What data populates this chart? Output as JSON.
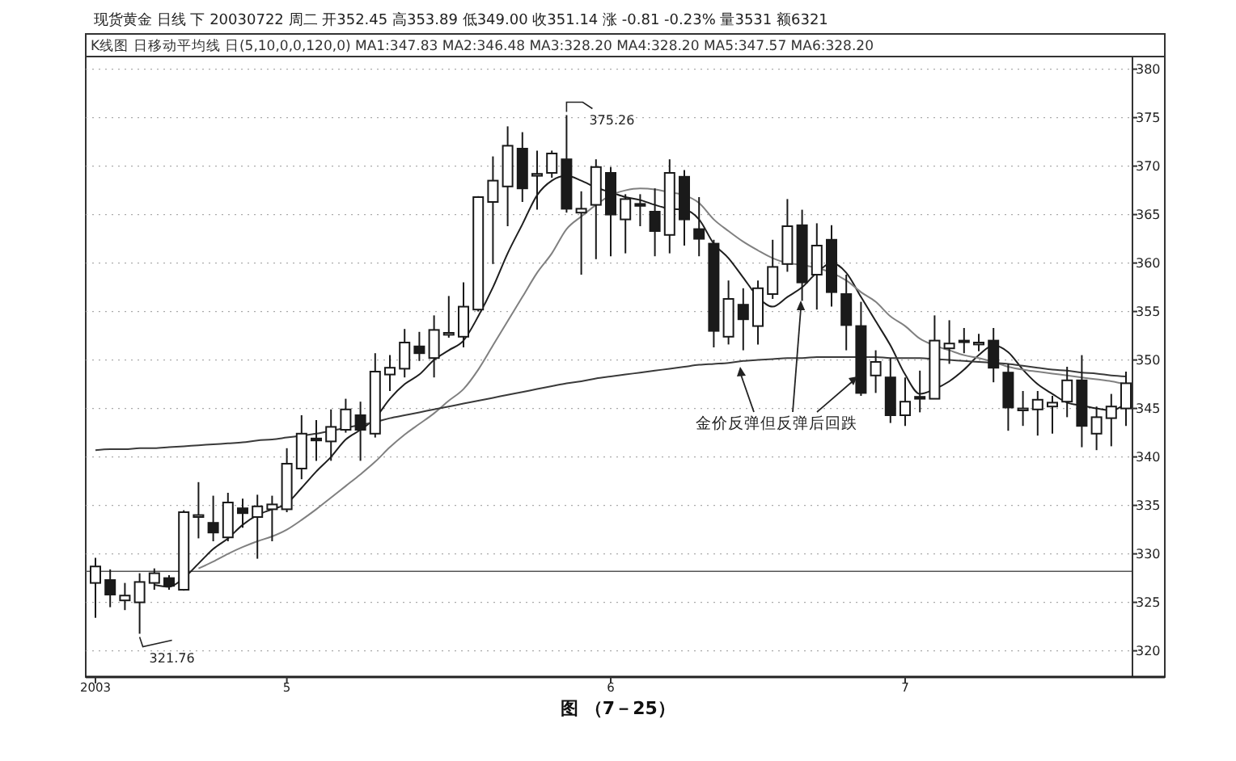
{
  "chart_data": {
    "type": "candlestick",
    "title": "现货黄金 日线 下 20030722 周二 开352.45 高353.89 低349.00 收351.14 涨 -0.81 -0.23% 量3531 额6321",
    "subtitle": "K线图 日移动平均线 日(5,10,0,0,120,0) MA1:347.83 MA2:346.48 MA3:328.20 MA4:328.20 MA5:347.57 MA6:328.20",
    "categories": [
      "2003",
      null,
      null,
      null,
      null,
      null,
      null,
      null,
      null,
      null,
      null,
      null,
      null,
      "5",
      null,
      null,
      null,
      null,
      null,
      null,
      null,
      null,
      null,
      null,
      null,
      null,
      null,
      null,
      null,
      null,
      null,
      null,
      null,
      null,
      null,
      "6",
      null,
      null,
      null,
      null,
      null,
      null,
      null,
      null,
      null,
      null,
      null,
      null,
      null,
      null,
      null,
      null,
      null,
      null,
      null,
      "7",
      null,
      null,
      null,
      null,
      null,
      null,
      null,
      null,
      null,
      null,
      null,
      null,
      null,
      null,
      null
    ],
    "ohlc": [
      [
        327.0,
        329.6,
        323.4,
        328.7
      ],
      [
        327.3,
        328.4,
        324.5,
        325.8
      ],
      [
        325.2,
        327.0,
        324.2,
        325.7
      ],
      [
        325.0,
        328.0,
        321.76,
        327.1
      ],
      [
        327.0,
        328.5,
        326.3,
        328.0
      ],
      [
        327.5,
        327.8,
        326.3,
        326.7
      ],
      [
        326.3,
        334.5,
        326.2,
        334.3
      ],
      [
        333.8,
        337.4,
        331.6,
        334.0
      ],
      [
        333.2,
        336.0,
        331.3,
        332.2
      ],
      [
        331.7,
        336.3,
        331.3,
        335.3
      ],
      [
        334.7,
        335.7,
        332.7,
        334.2
      ],
      [
        333.8,
        336.1,
        329.5,
        334.9
      ],
      [
        334.6,
        336.0,
        331.3,
        335.1
      ],
      [
        334.6,
        340.9,
        334.3,
        339.3
      ],
      [
        338.8,
        344.3,
        337.7,
        342.4
      ],
      [
        341.9,
        343.8,
        339.6,
        341.7
      ],
      [
        341.6,
        344.9,
        339.6,
        343.1
      ],
      [
        342.8,
        346.0,
        342.5,
        344.9
      ],
      [
        344.3,
        345.7,
        339.6,
        342.8
      ],
      [
        342.4,
        350.7,
        342.0,
        348.8
      ],
      [
        348.5,
        350.5,
        346.8,
        349.2
      ],
      [
        349.1,
        353.2,
        348.2,
        351.8
      ],
      [
        351.4,
        352.9,
        349.9,
        350.7
      ],
      [
        350.2,
        354.6,
        348.2,
        353.1
      ],
      [
        352.6,
        356.6,
        352.3,
        352.8
      ],
      [
        352.4,
        358.0,
        351.3,
        355.5
      ],
      [
        355.2,
        366.9,
        355.0,
        366.8
      ],
      [
        366.3,
        371.0,
        359.9,
        368.5
      ],
      [
        367.9,
        374.1,
        363.8,
        372.1
      ],
      [
        371.8,
        373.5,
        366.3,
        367.7
      ],
      [
        369.0,
        371.6,
        365.5,
        369.2
      ],
      [
        369.3,
        371.6,
        368.8,
        371.3
      ],
      [
        370.7,
        375.26,
        365.2,
        365.6
      ],
      [
        365.2,
        367.4,
        358.8,
        365.6
      ],
      [
        366.0,
        370.7,
        360.4,
        369.9
      ],
      [
        369.3,
        369.9,
        360.7,
        365.0
      ],
      [
        364.5,
        367.1,
        361.0,
        366.6
      ],
      [
        366.1,
        367.1,
        363.8,
        365.9
      ],
      [
        365.3,
        367.7,
        360.7,
        363.3
      ],
      [
        362.9,
        370.7,
        361.0,
        369.3
      ],
      [
        368.9,
        369.6,
        361.8,
        364.5
      ],
      [
        363.5,
        366.8,
        360.7,
        362.5
      ],
      [
        362.0,
        362.4,
        351.3,
        353.0
      ],
      [
        352.4,
        358.2,
        351.6,
        356.3
      ],
      [
        355.7,
        357.4,
        351.0,
        354.2
      ],
      [
        353.5,
        358.2,
        351.6,
        357.4
      ],
      [
        356.8,
        362.4,
        356.3,
        359.6
      ],
      [
        359.9,
        366.6,
        359.1,
        363.8
      ],
      [
        363.9,
        365.5,
        356.1,
        358.0
      ],
      [
        358.8,
        364.1,
        355.2,
        361.8
      ],
      [
        362.4,
        363.9,
        355.5,
        357.0
      ],
      [
        356.8,
        358.8,
        351.0,
        353.6
      ],
      [
        353.5,
        356.0,
        346.3,
        346.6
      ],
      [
        348.4,
        351.0,
        346.6,
        349.8
      ],
      [
        348.2,
        350.2,
        343.5,
        344.3
      ],
      [
        344.3,
        348.2,
        343.2,
        345.7
      ],
      [
        346.2,
        348.9,
        344.6,
        346.0
      ],
      [
        346.0,
        354.6,
        346.0,
        352.0
      ],
      [
        351.2,
        354.1,
        349.6,
        351.7
      ],
      [
        351.9,
        353.3,
        350.7,
        352.0
      ],
      [
        351.6,
        352.7,
        350.9,
        351.8
      ],
      [
        352.0,
        353.3,
        347.7,
        349.2
      ],
      [
        348.7,
        349.6,
        342.7,
        345.1
      ],
      [
        344.8,
        346.8,
        343.2,
        345.0
      ],
      [
        344.9,
        346.8,
        342.2,
        345.9
      ],
      [
        345.2,
        346.3,
        342.4,
        345.6
      ],
      [
        345.7,
        349.3,
        344.1,
        347.9
      ],
      [
        347.9,
        350.5,
        341.0,
        343.2
      ],
      [
        342.4,
        345.2,
        340.7,
        344.1
      ],
      [
        344.0,
        346.5,
        341.1,
        345.2
      ],
      [
        345.0,
        348.8,
        343.2,
        347.6
      ]
    ],
    "series": [
      {
        "type": "line",
        "color": "#1e1e1e",
        "values": [
          null,
          null,
          null,
          null,
          326.8,
          326.6,
          327.5,
          329.0,
          330.5,
          331.6,
          333.0,
          334.0,
          334.6,
          335.2,
          336.8,
          338.5,
          340.0,
          341.8,
          342.8,
          344.0,
          346.0,
          347.5,
          348.5,
          350.0,
          351.0,
          352.0,
          354.5,
          357.5,
          361.0,
          364.0,
          367.0,
          368.5,
          369.0,
          368.5,
          367.8,
          367.3,
          366.8,
          366.5,
          366.0,
          365.6,
          365.5,
          364.5,
          362.0,
          360.5,
          358.5,
          356.5,
          355.5,
          356.5,
          357.5,
          359.0,
          360.0,
          359.0,
          356.5,
          354.0,
          351.5,
          348.5,
          346.5,
          347.0,
          347.8,
          349.0,
          350.5,
          351.5,
          350.8,
          349.0,
          347.5,
          346.5,
          345.6,
          345.3,
          345.0,
          344.8,
          345.5
        ]
      },
      {
        "type": "line",
        "color": "#808080",
        "values": [
          null,
          null,
          null,
          null,
          null,
          null,
          null,
          328.5,
          329.2,
          330.0,
          330.7,
          331.3,
          331.8,
          332.5,
          333.5,
          334.6,
          335.8,
          337.0,
          338.2,
          339.5,
          341.0,
          342.3,
          343.4,
          344.5,
          345.8,
          347.0,
          349.0,
          351.5,
          354.0,
          356.5,
          359.0,
          361.0,
          363.5,
          364.8,
          366.0,
          367.0,
          367.5,
          367.7,
          367.6,
          367.3,
          367.0,
          366.2,
          364.5,
          363.3,
          362.2,
          361.3,
          360.5,
          360.0,
          359.8,
          359.5,
          359.0,
          358.2,
          357.0,
          356.0,
          354.5,
          353.5,
          352.2,
          351.5,
          351.0,
          350.5,
          350.2,
          349.8,
          349.3,
          349.0,
          348.8,
          348.6,
          348.4,
          348.2,
          348.0,
          347.8,
          347.5
        ]
      },
      {
        "type": "line",
        "color": "#3a3a3a",
        "values": [
          340.7,
          340.8,
          340.8,
          340.9,
          340.9,
          341.0,
          341.1,
          341.2,
          341.3,
          341.4,
          341.5,
          341.7,
          341.8,
          342.0,
          342.2,
          342.4,
          342.7,
          343.0,
          343.3,
          343.6,
          344.0,
          344.3,
          344.6,
          344.9,
          345.2,
          345.5,
          345.8,
          346.1,
          346.4,
          346.7,
          347.0,
          347.3,
          347.6,
          347.8,
          348.1,
          348.3,
          348.5,
          348.7,
          348.9,
          349.1,
          349.3,
          349.5,
          349.6,
          349.7,
          349.9,
          350.0,
          350.1,
          350.2,
          350.2,
          350.3,
          350.3,
          350.3,
          350.3,
          350.3,
          350.2,
          350.2,
          350.2,
          350.1,
          350.0,
          349.9,
          349.8,
          349.7,
          349.6,
          349.4,
          349.2,
          349.0,
          348.9,
          348.7,
          348.6,
          348.4,
          348.3
        ]
      }
    ],
    "ref_lines": [
      {
        "axis": "y",
        "value": 328.2,
        "color": "#555555"
      }
    ],
    "ylim": [
      317.3,
      381.3
    ],
    "yticks": [
      320,
      325,
      330,
      335,
      340,
      345,
      350,
      355,
      360,
      365,
      370,
      375,
      380
    ],
    "grid": "y",
    "annotations": [
      "321.76",
      "375.26",
      "金价反弹但反弹后回跌",
      "图 （7－25）"
    ]
  }
}
